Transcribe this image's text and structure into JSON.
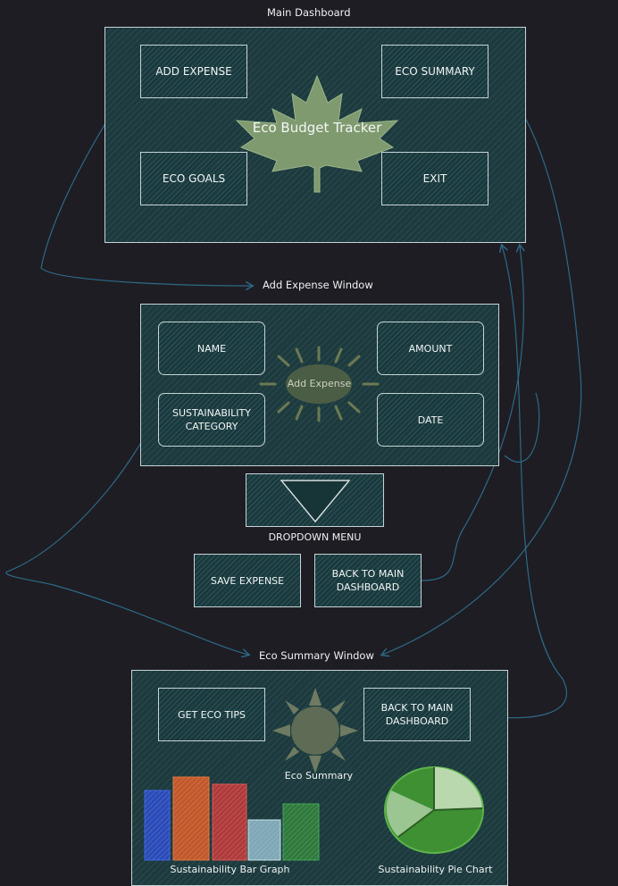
{
  "main_dashboard": {
    "title": "Main Dashboard",
    "app_name": "Eco Budget Tracker",
    "buttons": {
      "add_expense": "ADD EXPENSE",
      "eco_summary": "ECO SUMMARY",
      "eco_goals": "ECO GOALS",
      "exit": "EXIT"
    }
  },
  "add_expense_window": {
    "title": "Add Expense Window",
    "center_label": "Add Expense",
    "fields": {
      "name": "NAME",
      "amount": "AMOUNT",
      "sustainability_category": "SUSTAINABILITY CATEGORY",
      "date": "DATE"
    },
    "dropdown_label": "DROPDOWN MENU",
    "buttons": {
      "save_expense": "SAVE EXPENSE",
      "back_to_main": "BACK TO MAIN DASHBOARD"
    }
  },
  "eco_summary_window": {
    "title": "Eco Summary Window",
    "center_label": "Eco Summary",
    "buttons": {
      "get_eco_tips": "GET ECO TIPS",
      "back_to_main": "BACK TO MAIN DASHBOARD"
    },
    "bar_graph_label": "Sustainability Bar Graph",
    "pie_chart_label": "Sustainability Pie Chart"
  },
  "colors": {
    "background": "#1e1d24",
    "panel": "#1d3a3e",
    "border": "#c7d3d6",
    "leaf": "#7f9a6f",
    "arrow": "#2d6a86",
    "bar_blue": "#2a4bb8",
    "bar_orange": "#c2582a",
    "bar_red": "#b03a3a",
    "bar_light": "#b7d6e0",
    "bar_green": "#2e7a3c",
    "pie_green": "#3f8f33"
  }
}
